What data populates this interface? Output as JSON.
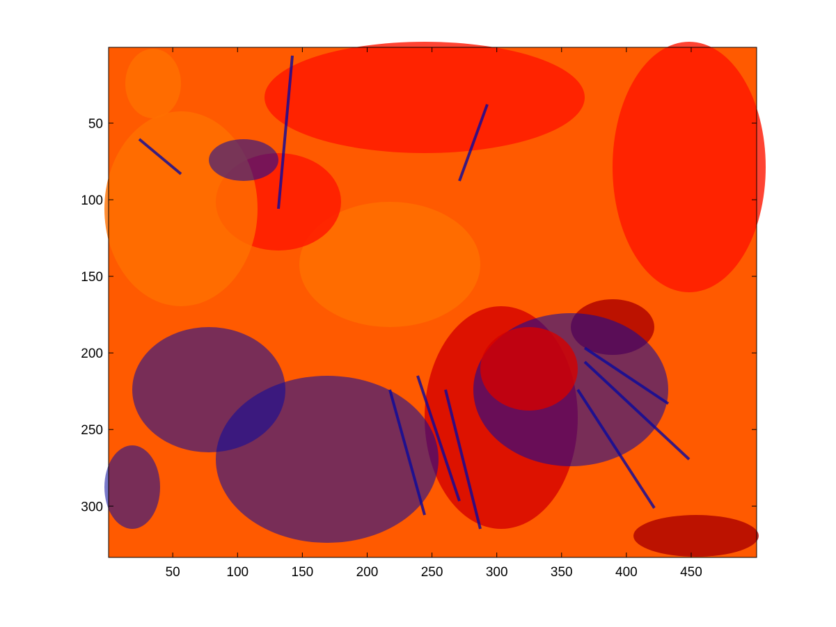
{
  "chart_data": {
    "type": "heatmap",
    "title": "",
    "xlabel": "",
    "ylabel": "",
    "xlim": [
      0.5,
      500.5
    ],
    "ylim": [
      0.5,
      333.5
    ],
    "y_direction": "reversed",
    "grid": false,
    "colorbar": false,
    "x_ticks": [
      50,
      100,
      150,
      200,
      250,
      300,
      350,
      400,
      450
    ],
    "y_ticks": [
      50,
      100,
      150,
      200,
      250,
      300
    ],
    "x_tick_labels": [
      "50",
      "100",
      "150",
      "200",
      "250",
      "300",
      "350",
      "400",
      "450"
    ],
    "y_tick_labels": [
      "50",
      "100",
      "150",
      "200",
      "250",
      "300"
    ],
    "colormap": [
      "#0a0a9e",
      "#ab0000",
      "#d40000",
      "#ff1500",
      "#ff5a00",
      "#ff7000"
    ],
    "pixel_levels": "continuous image (approx. 500 x 333 pixels) quantized to the colormap levels"
  },
  "colors": {
    "background": "#ffffff",
    "axes_border": "#000000"
  }
}
